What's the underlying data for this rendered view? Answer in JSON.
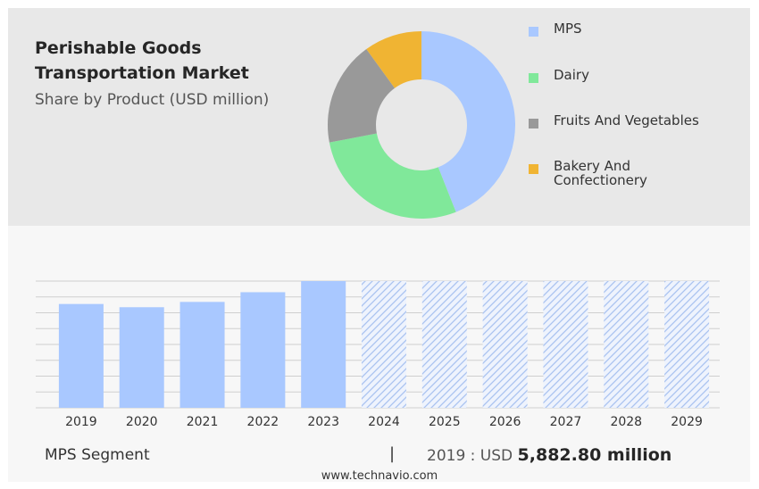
{
  "header": {
    "title": "Perishable Goods Transportation Market",
    "subtitle": "Share by Product (USD million)"
  },
  "legend": [
    {
      "label": "MPS",
      "color": "#a9c8ff"
    },
    {
      "label": "Dairy",
      "color": "#80e89a"
    },
    {
      "label": "Fruits And Vegetables",
      "color": "#999999"
    },
    {
      "label": "Bakery And Confectionery",
      "color": "#f0b433"
    }
  ],
  "footer": {
    "segment": "MPS Segment",
    "separator": "|",
    "year_label": "2019 : USD",
    "value": "5,882.80 million"
  },
  "website": "www.technavio.com",
  "chart_data": [
    {
      "type": "pie",
      "categories": [
        "MPS",
        "Dairy",
        "Fruits And Vegetables",
        "Bakery And Confectionery"
      ],
      "values": [
        44,
        28,
        18,
        10
      ],
      "colors": [
        "#a9c8ff",
        "#80e89a",
        "#999999",
        "#f0b433"
      ],
      "donut": true
    },
    {
      "type": "bar",
      "categories": [
        "2019",
        "2020",
        "2021",
        "2022",
        "2023",
        "2024",
        "2025",
        "2026",
        "2027",
        "2028",
        "2029"
      ],
      "values": [
        5882.8,
        5700,
        6000,
        6550,
        7180,
        null,
        null,
        null,
        null,
        null,
        null
      ],
      "forecast_categories": [
        "2024",
        "2025",
        "2026",
        "2027",
        "2028",
        "2029"
      ],
      "ylim": [
        0,
        7180
      ],
      "grid": true,
      "color": "#a9c8ff"
    }
  ]
}
